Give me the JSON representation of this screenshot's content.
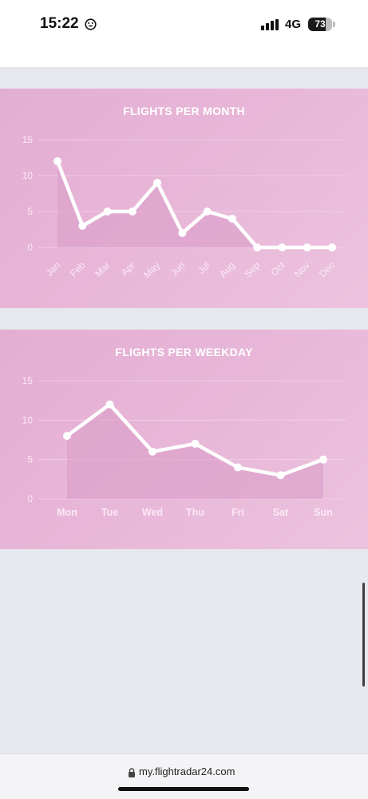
{
  "status_bar": {
    "time": "15:22",
    "network": "4G",
    "battery": "73",
    "battery_fraction": 0.73,
    "icons": [
      "smiley-icon",
      "signal-icon",
      "battery-icon"
    ]
  },
  "browser": {
    "url": "my.flightradar24.com",
    "icons": [
      "lock-icon"
    ]
  },
  "colors": {
    "panel_bg": "#e8b7d8",
    "line": "#ffffff",
    "area_fill": "#d99ac8",
    "grid": "#f5d9ec",
    "axis_text": "#fbe9f5"
  },
  "chart_data": [
    {
      "type": "line",
      "title": "FLIGHTS PER MONTH",
      "categories": [
        "Jan",
        "Feb",
        "Mar",
        "Apr",
        "May",
        "Jun",
        "Jul",
        "Aug",
        "Sep",
        "Oct",
        "Nov",
        "Dec"
      ],
      "values": [
        12,
        3,
        5,
        5,
        9,
        2,
        5,
        4,
        0,
        0,
        0,
        0
      ],
      "ylim": [
        0,
        15
      ],
      "yticks": [
        "0",
        "5",
        "10",
        "15"
      ],
      "xlabel": "",
      "ylabel": "",
      "grid": true,
      "area_fill": true,
      "rotated_labels": true
    },
    {
      "type": "line",
      "title": "FLIGHTS PER WEEKDAY",
      "categories": [
        "Mon",
        "Tue",
        "Wed",
        "Thu",
        "Fri",
        "Sat",
        "Sun"
      ],
      "values": [
        8,
        12,
        6,
        7,
        4,
        3,
        5
      ],
      "ylim": [
        0,
        15
      ],
      "yticks": [
        "0",
        "5",
        "10",
        "15"
      ],
      "xlabel": "",
      "ylabel": "",
      "grid": true,
      "area_fill": true,
      "rotated_labels": false
    }
  ]
}
